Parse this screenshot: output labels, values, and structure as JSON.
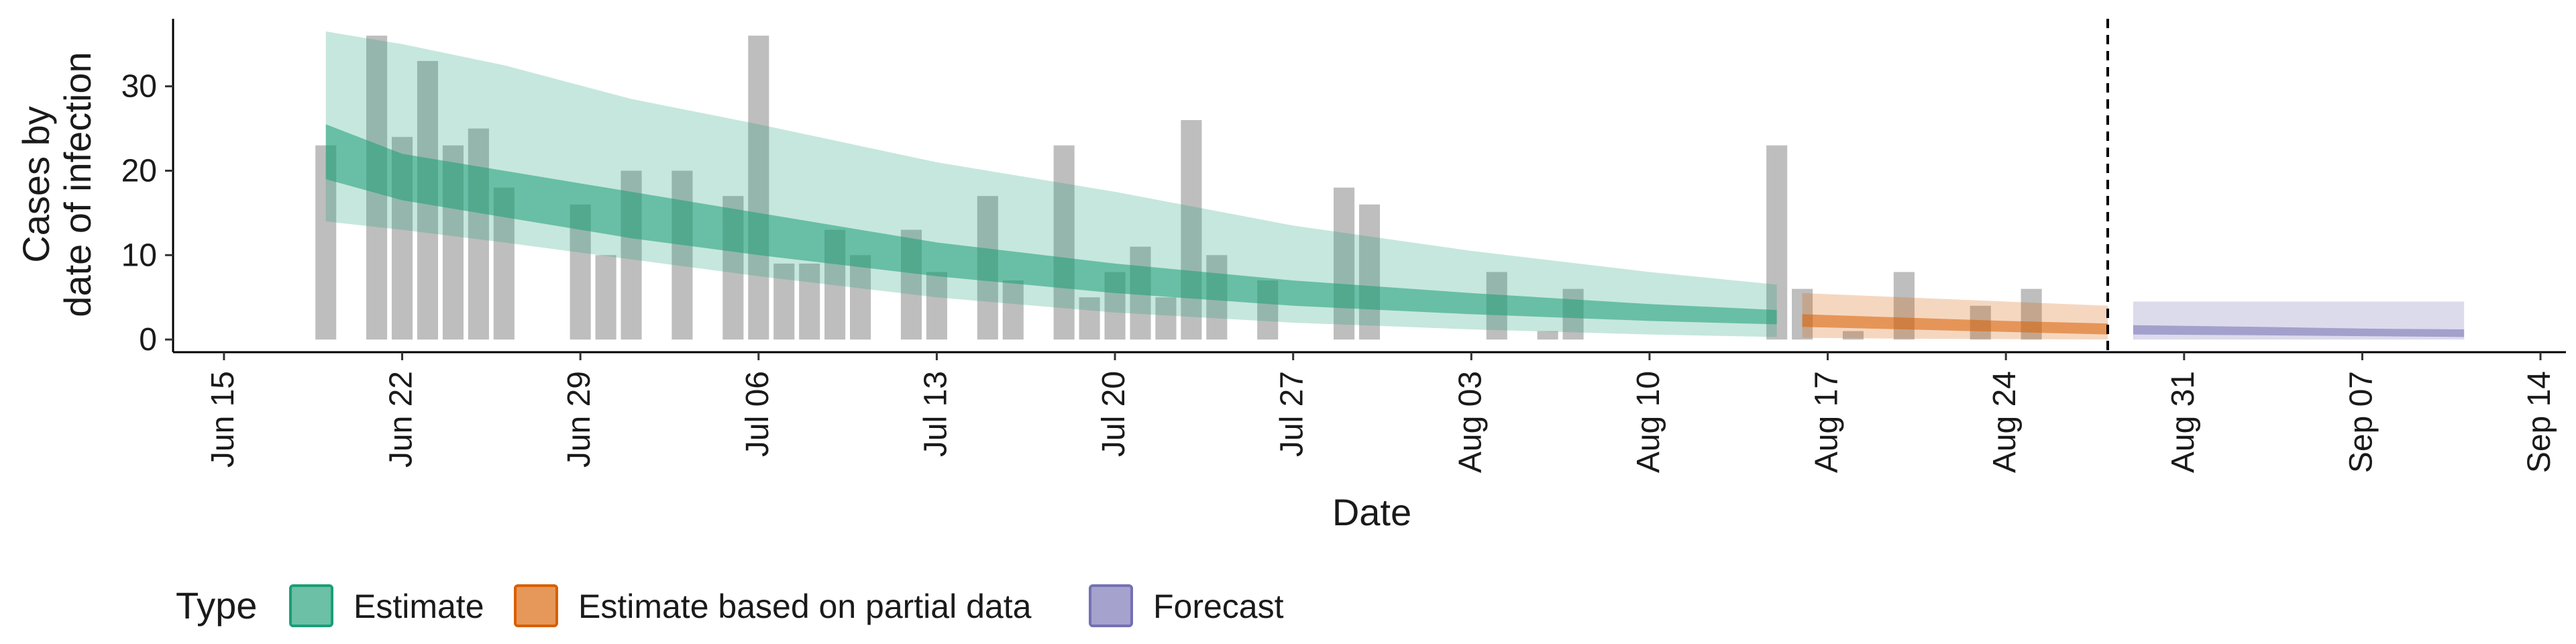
{
  "chart_data": {
    "type": "bar",
    "title": "",
    "xlabel": "Date",
    "ylabel": [
      "Cases by",
      "date of infection"
    ],
    "ylim": [
      -1.5,
      38
    ],
    "yticks": [
      0,
      10,
      20,
      30
    ],
    "x_range": [
      "2020-06-13",
      "2020-09-15"
    ],
    "xticks": [
      {
        "date": "2020-06-15",
        "label": "Jun 15"
      },
      {
        "date": "2020-06-22",
        "label": "Jun 22"
      },
      {
        "date": "2020-06-29",
        "label": "Jun 29"
      },
      {
        "date": "2020-07-06",
        "label": "Jul 06"
      },
      {
        "date": "2020-07-13",
        "label": "Jul 13"
      },
      {
        "date": "2020-07-20",
        "label": "Jul 20"
      },
      {
        "date": "2020-07-27",
        "label": "Jul 27"
      },
      {
        "date": "2020-08-03",
        "label": "Aug 03"
      },
      {
        "date": "2020-08-10",
        "label": "Aug 10"
      },
      {
        "date": "2020-08-17",
        "label": "Aug 17"
      },
      {
        "date": "2020-08-24",
        "label": "Aug 24"
      },
      {
        "date": "2020-08-31",
        "label": "Aug 31"
      },
      {
        "date": "2020-09-07",
        "label": "Sep 07"
      },
      {
        "date": "2020-09-14",
        "label": "Sep 14"
      }
    ],
    "grid": false,
    "legend_placement": "bottom-left",
    "legend_title": "Type",
    "forecast_start_line": "2020-08-28",
    "bar_color": "#bebebe",
    "observed_cases": [
      {
        "date": "2020-06-19",
        "value": 23
      },
      {
        "date": "2020-06-21",
        "value": 36
      },
      {
        "date": "2020-06-22",
        "value": 24
      },
      {
        "date": "2020-06-23",
        "value": 33
      },
      {
        "date": "2020-06-24",
        "value": 23
      },
      {
        "date": "2020-06-25",
        "value": 25
      },
      {
        "date": "2020-06-26",
        "value": 18
      },
      {
        "date": "2020-06-29",
        "value": 16
      },
      {
        "date": "2020-06-30",
        "value": 10
      },
      {
        "date": "2020-07-01",
        "value": 20
      },
      {
        "date": "2020-07-03",
        "value": 20
      },
      {
        "date": "2020-07-05",
        "value": 17
      },
      {
        "date": "2020-07-06",
        "value": 36
      },
      {
        "date": "2020-07-07",
        "value": 9
      },
      {
        "date": "2020-07-08",
        "value": 9
      },
      {
        "date": "2020-07-09",
        "value": 13
      },
      {
        "date": "2020-07-10",
        "value": 10
      },
      {
        "date": "2020-07-12",
        "value": 13
      },
      {
        "date": "2020-07-13",
        "value": 8
      },
      {
        "date": "2020-07-15",
        "value": 17
      },
      {
        "date": "2020-07-16",
        "value": 7
      },
      {
        "date": "2020-07-18",
        "value": 23
      },
      {
        "date": "2020-07-19",
        "value": 5
      },
      {
        "date": "2020-07-20",
        "value": 8
      },
      {
        "date": "2020-07-21",
        "value": 11
      },
      {
        "date": "2020-07-22",
        "value": 5
      },
      {
        "date": "2020-07-23",
        "value": 26
      },
      {
        "date": "2020-07-24",
        "value": 10
      },
      {
        "date": "2020-07-26",
        "value": 7
      },
      {
        "date": "2020-07-29",
        "value": 18
      },
      {
        "date": "2020-07-30",
        "value": 16
      },
      {
        "date": "2020-08-04",
        "value": 8
      },
      {
        "date": "2020-08-06",
        "value": 1
      },
      {
        "date": "2020-08-07",
        "value": 6
      },
      {
        "date": "2020-08-15",
        "value": 23
      },
      {
        "date": "2020-08-16",
        "value": 6
      },
      {
        "date": "2020-08-18",
        "value": 1
      },
      {
        "date": "2020-08-20",
        "value": 8
      },
      {
        "date": "2020-08-23",
        "value": 4
      },
      {
        "date": "2020-08-25",
        "value": 6
      }
    ],
    "series": [
      {
        "name": "Estimate",
        "color": "#1b9e77",
        "dates": [
          "2020-06-19",
          "2020-06-22",
          "2020-06-26",
          "2020-07-01",
          "2020-07-06",
          "2020-07-13",
          "2020-07-20",
          "2020-07-27",
          "2020-08-03",
          "2020-08-10",
          "2020-08-15"
        ],
        "outer_upper": [
          36.5,
          35,
          32.5,
          28.5,
          25.5,
          21,
          17.5,
          13.5,
          10.5,
          8,
          6.5
        ],
        "inner_upper": [
          25.5,
          22,
          20,
          17.5,
          15,
          11.5,
          9,
          7,
          5.5,
          4.2,
          3.5
        ],
        "inner_lower": [
          19,
          16.5,
          14.5,
          12,
          10,
          7.5,
          5.5,
          4,
          3,
          2.2,
          1.8
        ],
        "outer_lower": [
          14,
          13,
          11.5,
          9.5,
          7.5,
          5,
          3.2,
          2,
          1.2,
          0.6,
          0.3
        ]
      },
      {
        "name": "Estimate based on partial data",
        "color": "#d95f02",
        "dates": [
          "2020-08-16",
          "2020-08-20",
          "2020-08-24",
          "2020-08-28"
        ],
        "outer_upper": [
          5.5,
          5,
          4.5,
          4
        ],
        "inner_upper": [
          3,
          2.6,
          2.2,
          1.9
        ],
        "inner_lower": [
          1.5,
          1.2,
          0.9,
          0.6
        ],
        "outer_lower": [
          0.2,
          0.1,
          0.05,
          0
        ]
      },
      {
        "name": "Forecast",
        "color": "#7570b3",
        "dates": [
          "2020-08-29",
          "2020-09-03",
          "2020-09-07",
          "2020-09-11"
        ],
        "outer_upper": [
          4.5,
          4.5,
          4.5,
          4.5
        ],
        "inner_upper": [
          1.7,
          1.5,
          1.3,
          1.2
        ],
        "inner_lower": [
          0.6,
          0.5,
          0.4,
          0.3
        ],
        "outer_lower": [
          0,
          0,
          0,
          0
        ]
      }
    ]
  }
}
